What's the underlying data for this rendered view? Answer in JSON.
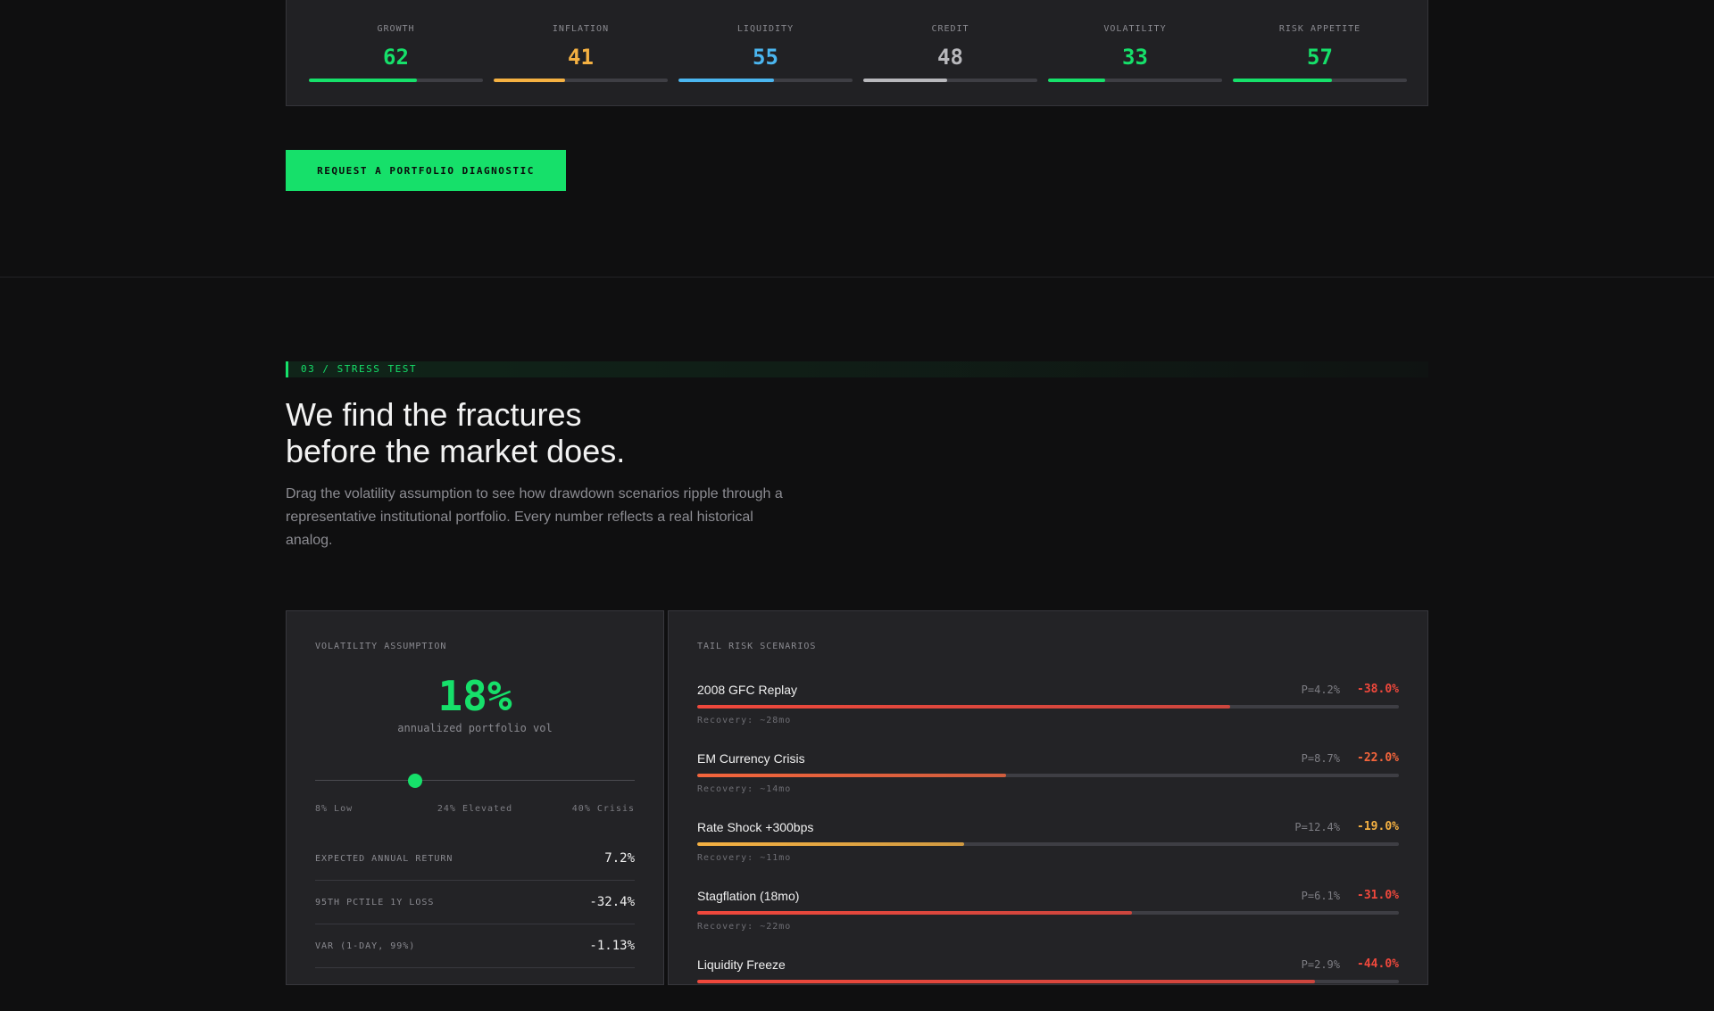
{
  "regime": {
    "indicators": [
      {
        "label": "GROWTH",
        "value": "62",
        "level": 0.62,
        "color": "#16e06a"
      },
      {
        "label": "INFLATION",
        "value": "41",
        "level": 0.41,
        "color": "#f5b142"
      },
      {
        "label": "LIQUIDITY",
        "value": "55",
        "level": 0.55,
        "color": "#4bb6f0"
      },
      {
        "label": "CREDIT",
        "value": "48",
        "level": 0.48,
        "color": "#b8b8bc"
      },
      {
        "label": "VOLATILITY",
        "value": "33",
        "level": 0.33,
        "color": "#16e06a"
      },
      {
        "label": "RISK APPETITE",
        "value": "57",
        "level": 0.57,
        "color": "#16e06a"
      }
    ]
  },
  "cta": {
    "label": "REQUEST A PORTFOLIO DIAGNOSTIC"
  },
  "stress": {
    "eyebrow": "03 / STRESS TEST",
    "headline_line1": "We find the fractures",
    "headline_line2": "before the market does.",
    "intro": "Drag the volatility assumption to see how drawdown scenarios ripple through a representative institutional portfolio. Every number reflects a real historical analog."
  },
  "volatility": {
    "label": "VOLATILITY ASSUMPTION",
    "value": "18%",
    "subtitle": "annualized portfolio vol",
    "slider": {
      "min": 8,
      "max": 40,
      "current": 18
    },
    "ticks": [
      "8% Low",
      "24% Elevated",
      "40% Crisis"
    ],
    "stats": [
      {
        "label": "EXPECTED ANNUAL RETURN",
        "value": "7.2%"
      },
      {
        "label": "95TH PCTILE 1Y LOSS",
        "value": "-32.4%"
      },
      {
        "label": "VAR (1-DAY, 99%)",
        "value": "-1.13%"
      }
    ]
  },
  "tail_risk": {
    "label": "TAIL RISK SCENARIOS",
    "scenarios": [
      {
        "name": "2008 GFC Replay",
        "probability": "P=4.2%",
        "loss": "-38.0%",
        "severity": 0.76,
        "color": "#f0483c",
        "recovery": "Recovery: ~28mo"
      },
      {
        "name": "EM Currency Crisis",
        "probability": "P=8.7%",
        "loss": "-22.0%",
        "severity": 0.44,
        "color": "#f4653c",
        "recovery": "Recovery: ~14mo"
      },
      {
        "name": "Rate Shock +300bps",
        "probability": "P=12.4%",
        "loss": "-19.0%",
        "severity": 0.38,
        "color": "#f5b142",
        "recovery": "Recovery: ~11mo"
      },
      {
        "name": "Stagflation (18mo)",
        "probability": "P=6.1%",
        "loss": "-31.0%",
        "severity": 0.62,
        "color": "#f0483c",
        "recovery": "Recovery: ~22mo"
      },
      {
        "name": "Liquidity Freeze",
        "probability": "P=2.9%",
        "loss": "-44.0%",
        "severity": 0.88,
        "color": "#f0483c",
        "recovery": ""
      }
    ]
  }
}
